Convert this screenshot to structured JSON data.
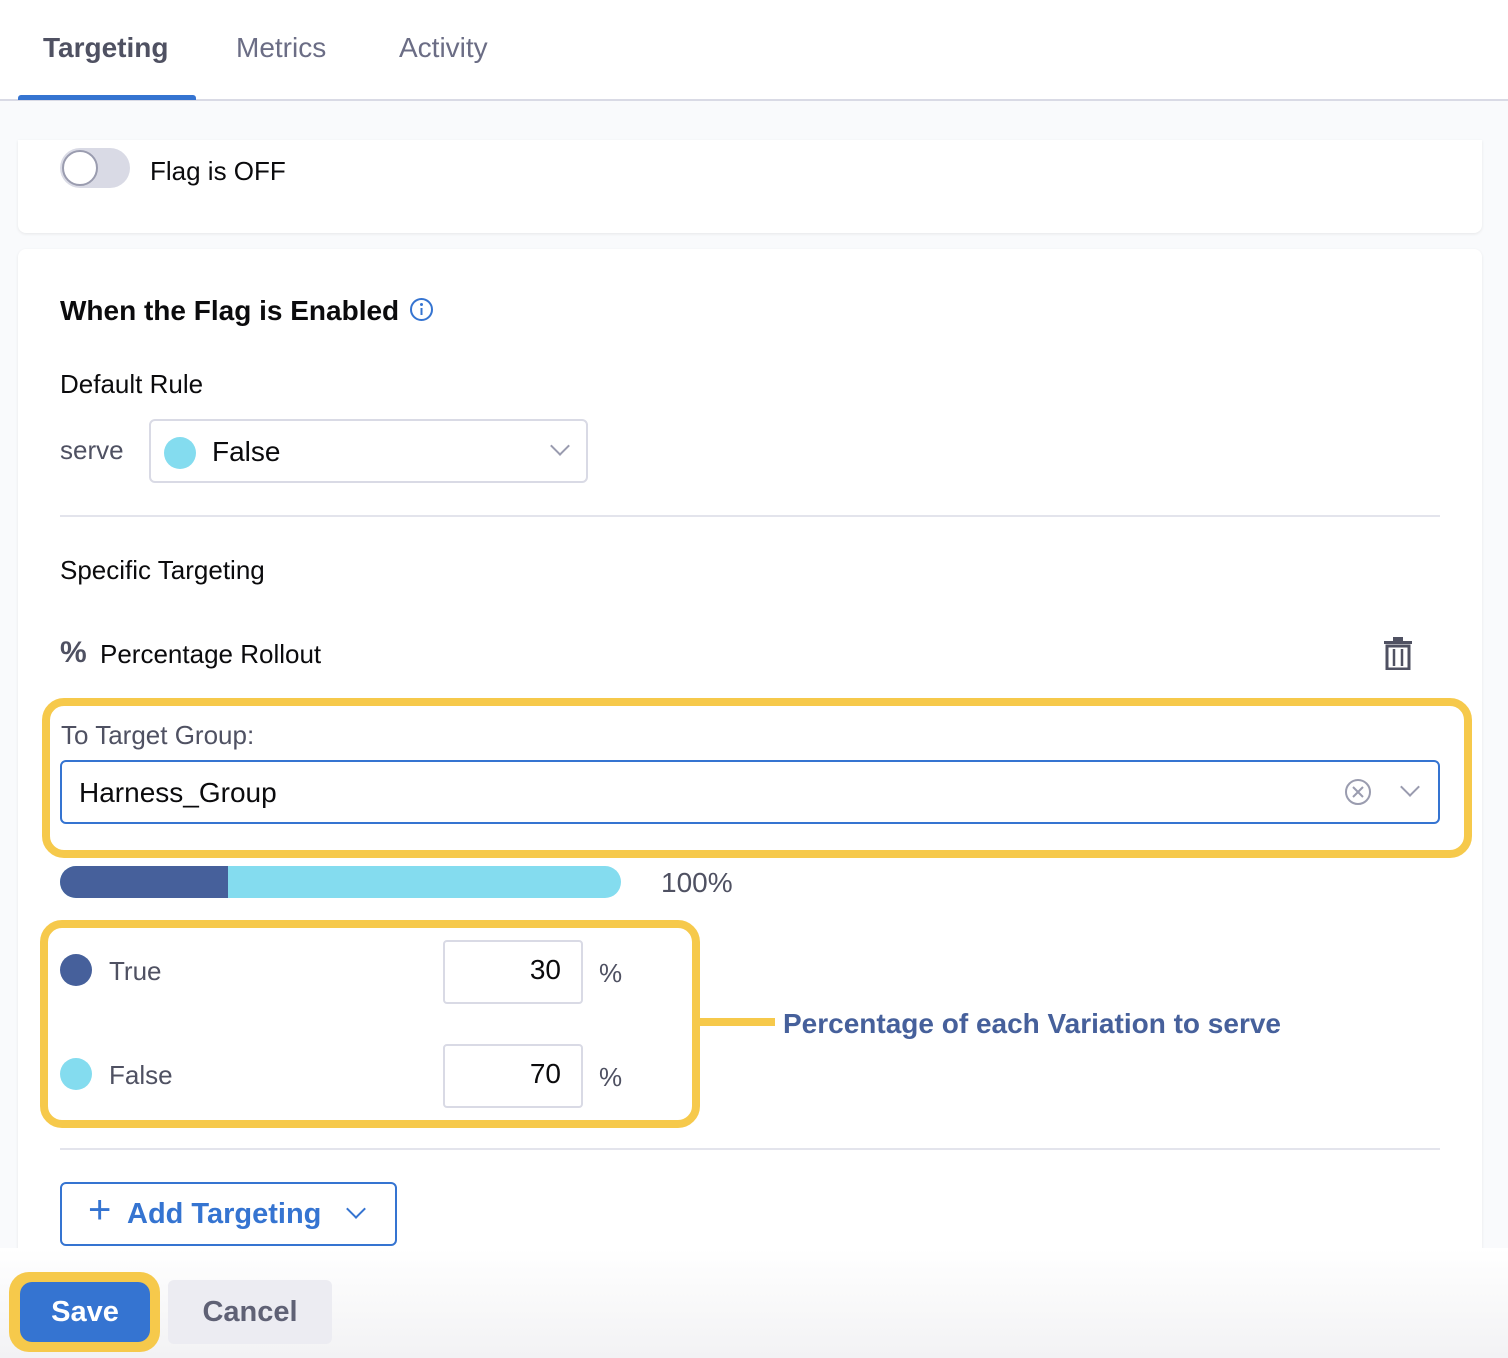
{
  "tabs": [
    {
      "label": "Targeting",
      "active": true
    },
    {
      "label": "Metrics"
    },
    {
      "label": "Activity"
    }
  ],
  "flag_toggle": {
    "label": "Flag is OFF",
    "on": false
  },
  "enabled_section": {
    "title": "When the Flag is Enabled",
    "default_rule_label": "Default Rule",
    "serve_label": "serve",
    "serve_value": "False",
    "serve_color": "#84dcef"
  },
  "specific": {
    "title": "Specific Targeting",
    "rule_symbol": "%",
    "rule_label": "Percentage Rollout",
    "target_group_label": "To Target Group:",
    "target_group_value": "Harness_Group",
    "total": "100%",
    "variations": [
      {
        "name": "True",
        "value": "30",
        "unit": "%",
        "color": "#46609b"
      },
      {
        "name": "False",
        "value": "70",
        "unit": "%",
        "color": "#84dcef"
      }
    ]
  },
  "annotation": "Percentage of each Variation to serve",
  "add_targeting_label": "Add Targeting",
  "footer": {
    "save": "Save",
    "cancel": "Cancel"
  },
  "colors": {
    "accent": "#3574d1",
    "highlight": "#f6c94b"
  }
}
